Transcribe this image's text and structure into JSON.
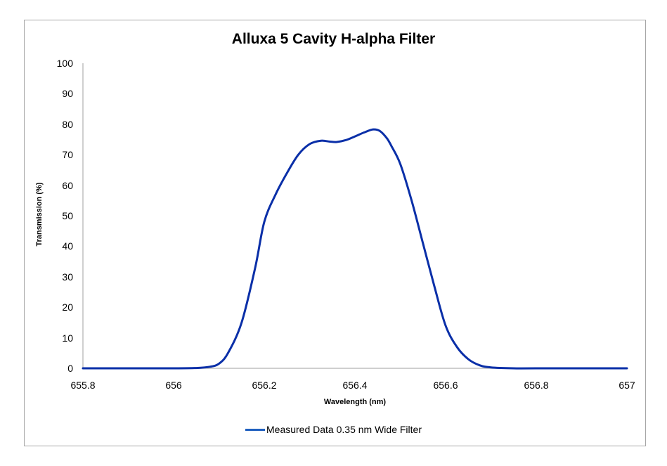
{
  "chart_data": {
    "type": "line",
    "title": "Alluxa 5 Cavity H-alpha Filter",
    "xlabel": "Wavelength (nm)",
    "ylabel": "Transmission (%)",
    "xlim": [
      655.8,
      657
    ],
    "ylim": [
      0,
      100
    ],
    "x_ticks": [
      "655.8",
      "656",
      "656.2",
      "656.4",
      "656.6",
      "656.8",
      "657"
    ],
    "y_ticks": [
      "0",
      "10",
      "20",
      "30",
      "40",
      "50",
      "60",
      "70",
      "80",
      "90",
      "100"
    ],
    "grid": false,
    "legend_position": "bottom",
    "series": [
      {
        "name": "Measured Data 0.35 nm Wide Filter",
        "color": "#0a2fa8",
        "x": [
          655.8,
          656.0,
          656.05,
          656.08,
          656.1,
          656.12,
          656.15,
          656.18,
          656.2,
          656.225,
          656.25,
          656.275,
          656.3,
          656.325,
          656.345,
          656.36,
          656.38,
          656.4,
          656.42,
          656.44,
          656.455,
          656.47,
          656.48,
          656.5,
          656.525,
          656.55,
          656.575,
          656.6,
          656.625,
          656.65,
          656.675,
          656.7,
          656.75,
          656.8,
          657.0
        ],
        "y": [
          0,
          0,
          0.1,
          0.5,
          1.5,
          5,
          15,
          33,
          48,
          57,
          64,
          70,
          73.5,
          74.6,
          74.3,
          74.2,
          74.8,
          76,
          77.3,
          78.3,
          77.8,
          75.5,
          73,
          67,
          55,
          41,
          27,
          14,
          7,
          3,
          1,
          0.3,
          0,
          0,
          0
        ]
      }
    ]
  },
  "legend": {
    "label": "Measured Data 0.35 nm Wide Filter",
    "color": "#1f5fbf"
  }
}
